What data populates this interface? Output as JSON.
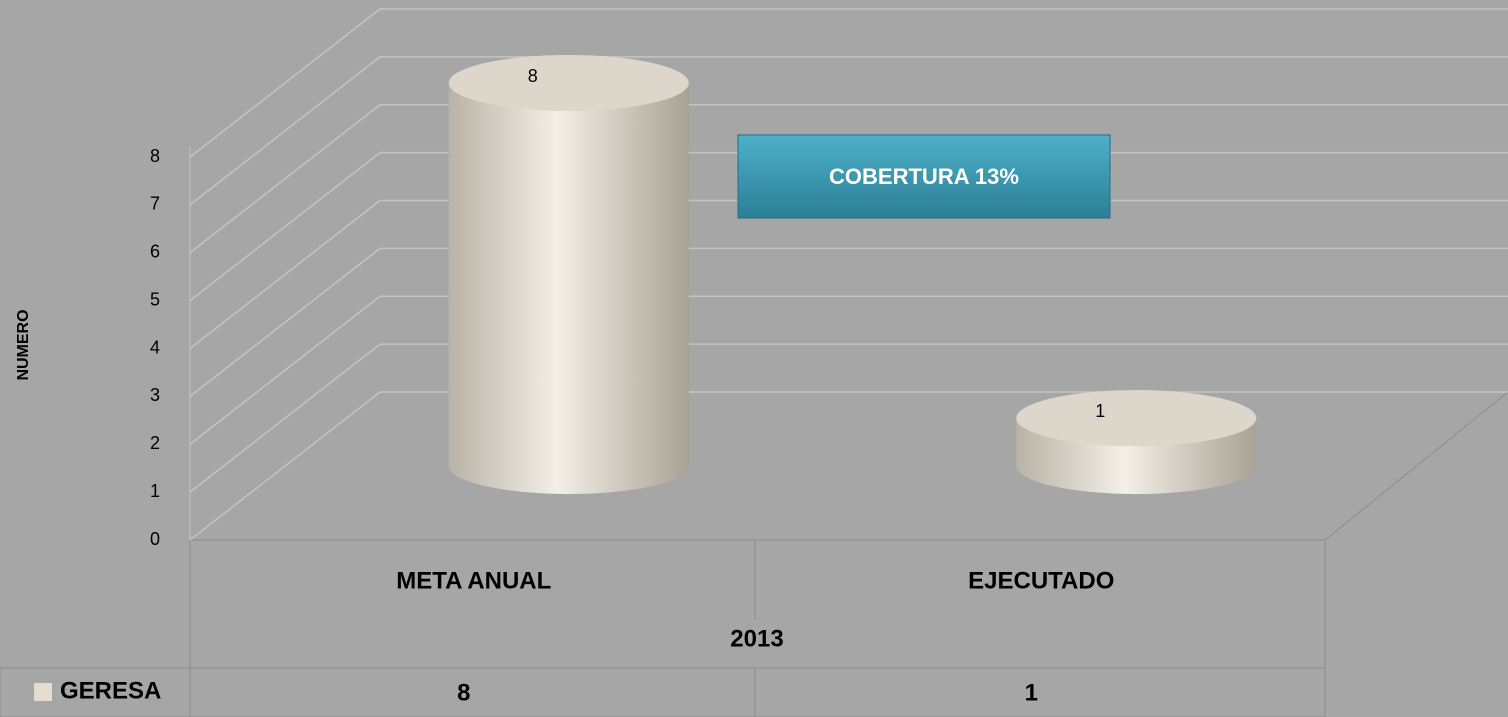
{
  "chart_data": {
    "type": "cylinder",
    "categories": [
      "META ANUAL",
      "EJECUTADO"
    ],
    "group_label": "2013",
    "series": [
      {
        "name": "GERESA",
        "color": "#e4ded2",
        "values": [
          8,
          1
        ]
      }
    ],
    "ylabel": "NUMERO",
    "annotation": "COBERTURA 13%",
    "ylim": [
      0,
      8
    ],
    "yticks": [
      0,
      1,
      2,
      3,
      4,
      5,
      6,
      7,
      8
    ],
    "grid": true
  }
}
